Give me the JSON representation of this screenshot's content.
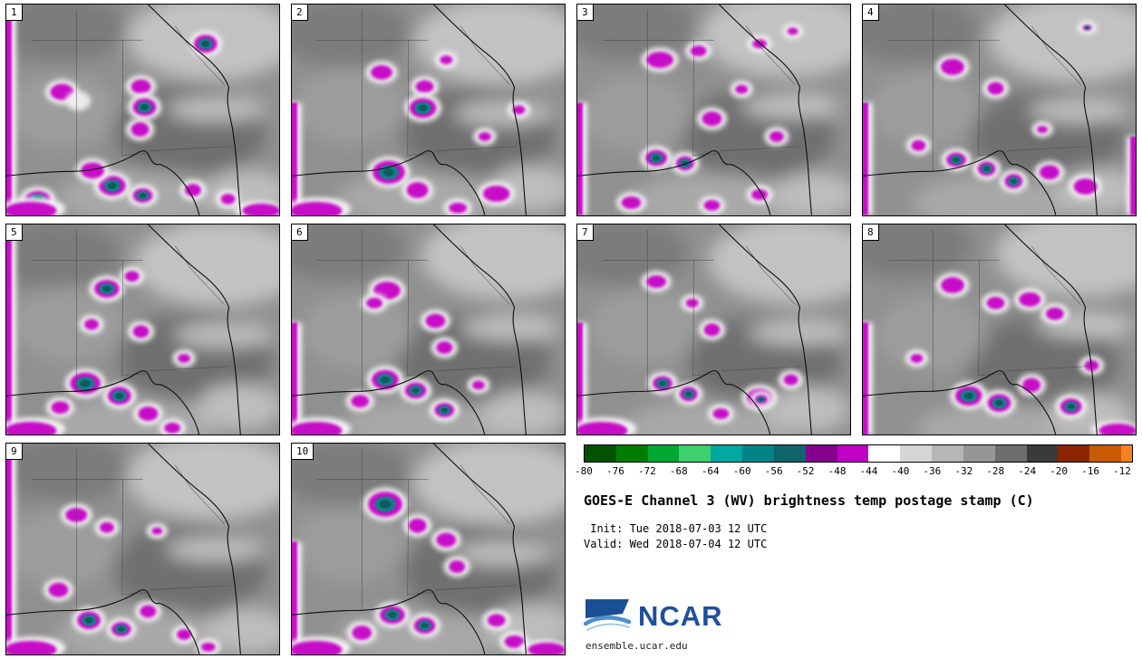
{
  "figure": {
    "background": "#ffffff"
  },
  "panels": [
    {
      "label": "1",
      "blobs": [
        [
          62,
          98,
          13,
          9,
          "m"
        ],
        [
          80,
          108,
          8,
          6,
          "w"
        ],
        [
          150,
          92,
          11,
          8,
          "m"
        ],
        [
          154,
          115,
          13,
          10,
          "t"
        ],
        [
          149,
          140,
          10,
          8,
          "m"
        ],
        [
          222,
          44,
          13,
          10,
          "t"
        ],
        [
          118,
          203,
          15,
          11,
          "t"
        ],
        [
          152,
          214,
          11,
          8,
          "t"
        ],
        [
          96,
          186,
          13,
          9,
          "m"
        ],
        [
          208,
          208,
          9,
          7,
          "m"
        ],
        [
          247,
          218,
          8,
          6,
          "m"
        ],
        [
          35,
          218,
          14,
          9,
          "t"
        ]
      ],
      "edges": [
        "L",
        "bl",
        "br"
      ]
    },
    {
      "label": "2",
      "blobs": [
        [
          100,
          76,
          12,
          8,
          "m"
        ],
        [
          148,
          92,
          10,
          7,
          "m"
        ],
        [
          146,
          116,
          15,
          11,
          "t"
        ],
        [
          108,
          188,
          18,
          13,
          "t"
        ],
        [
          140,
          208,
          12,
          9,
          "m"
        ],
        [
          172,
          62,
          7,
          5,
          "m"
        ],
        [
          215,
          148,
          7,
          5,
          "m"
        ],
        [
          253,
          118,
          7,
          5,
          "m"
        ],
        [
          228,
          212,
          15,
          9,
          "m"
        ],
        [
          185,
          228,
          10,
          6,
          "m"
        ]
      ],
      "edges": [
        "l",
        "bl"
      ]
    },
    {
      "label": "3",
      "blobs": [
        [
          92,
          62,
          15,
          9,
          "m"
        ],
        [
          135,
          52,
          9,
          6,
          "m"
        ],
        [
          203,
          44,
          8,
          5,
          "m"
        ],
        [
          240,
          30,
          6,
          4,
          "m"
        ],
        [
          150,
          128,
          11,
          8,
          "m"
        ],
        [
          183,
          95,
          7,
          5,
          "m"
        ],
        [
          88,
          172,
          12,
          9,
          "t"
        ],
        [
          120,
          178,
          10,
          8,
          "t"
        ],
        [
          222,
          148,
          8,
          6,
          "m"
        ],
        [
          203,
          213,
          9,
          6,
          "m"
        ],
        [
          60,
          222,
          11,
          7,
          "m"
        ],
        [
          150,
          225,
          9,
          6,
          "m"
        ]
      ],
      "edges": [
        "l"
      ]
    },
    {
      "label": "4",
      "blobs": [
        [
          100,
          70,
          13,
          9,
          "m"
        ],
        [
          148,
          94,
          9,
          7,
          "m"
        ],
        [
          62,
          158,
          8,
          6,
          "m"
        ],
        [
          104,
          174,
          11,
          8,
          "t"
        ],
        [
          138,
          184,
          10,
          8,
          "t"
        ],
        [
          168,
          198,
          10,
          8,
          "t"
        ],
        [
          208,
          188,
          11,
          8,
          "m"
        ],
        [
          248,
          204,
          13,
          9,
          "m"
        ],
        [
          250,
          26,
          5,
          3,
          "t"
        ],
        [
          200,
          140,
          6,
          4,
          "m"
        ]
      ],
      "edges": [
        "l",
        "r"
      ]
    },
    {
      "label": "5",
      "blobs": [
        [
          112,
          72,
          14,
          10,
          "t"
        ],
        [
          140,
          58,
          8,
          6,
          "m"
        ],
        [
          95,
          112,
          8,
          6,
          "m"
        ],
        [
          150,
          120,
          9,
          7,
          "m"
        ],
        [
          88,
          178,
          17,
          12,
          "t"
        ],
        [
          126,
          192,
          13,
          10,
          "t"
        ],
        [
          158,
          212,
          11,
          8,
          "m"
        ],
        [
          198,
          150,
          7,
          5,
          "m"
        ],
        [
          60,
          205,
          10,
          7,
          "m"
        ],
        [
          185,
          228,
          9,
          6,
          "m"
        ]
      ],
      "edges": [
        "L",
        "bl"
      ]
    },
    {
      "label": "6",
      "blobs": [
        [
          106,
          74,
          15,
          10,
          "m"
        ],
        [
          92,
          88,
          9,
          6,
          "m"
        ],
        [
          160,
          108,
          11,
          8,
          "m"
        ],
        [
          170,
          138,
          9,
          7,
          "m"
        ],
        [
          104,
          174,
          15,
          11,
          "t"
        ],
        [
          138,
          186,
          12,
          9,
          "t"
        ],
        [
          170,
          208,
          11,
          8,
          "t"
        ],
        [
          76,
          198,
          10,
          7,
          "m"
        ],
        [
          208,
          180,
          7,
          5,
          "m"
        ]
      ],
      "edges": [
        "l",
        "bl"
      ]
    },
    {
      "label": "7",
      "blobs": [
        [
          88,
          64,
          11,
          7,
          "m"
        ],
        [
          128,
          88,
          7,
          5,
          "m"
        ],
        [
          150,
          118,
          9,
          7,
          "m"
        ],
        [
          95,
          178,
          11,
          8,
          "t"
        ],
        [
          124,
          190,
          10,
          8,
          "t"
        ],
        [
          203,
          194,
          14,
          10,
          "m"
        ],
        [
          205,
          196,
          7,
          5,
          "t"
        ],
        [
          238,
          174,
          8,
          6,
          "m"
        ],
        [
          160,
          212,
          9,
          6,
          "m"
        ]
      ],
      "edges": [
        "l",
        "bl"
      ]
    },
    {
      "label": "8",
      "blobs": [
        [
          100,
          68,
          13,
          9,
          "m"
        ],
        [
          148,
          88,
          10,
          7,
          "m"
        ],
        [
          186,
          84,
          12,
          8,
          "m"
        ],
        [
          214,
          100,
          10,
          7,
          "m"
        ],
        [
          118,
          192,
          15,
          11,
          "t"
        ],
        [
          152,
          200,
          13,
          10,
          "t"
        ],
        [
          188,
          180,
          10,
          8,
          "m"
        ],
        [
          232,
          204,
          12,
          9,
          "t"
        ],
        [
          255,
          158,
          8,
          6,
          "m"
        ],
        [
          60,
          150,
          7,
          5,
          "m"
        ]
      ],
      "edges": [
        "l",
        "br"
      ]
    },
    {
      "label": "9",
      "blobs": [
        [
          78,
          80,
          12,
          8,
          "m"
        ],
        [
          112,
          94,
          8,
          6,
          "m"
        ],
        [
          168,
          98,
          6,
          4,
          "m"
        ],
        [
          58,
          164,
          11,
          8,
          "m"
        ],
        [
          92,
          198,
          13,
          10,
          "t"
        ],
        [
          128,
          208,
          11,
          8,
          "t"
        ],
        [
          158,
          188,
          9,
          7,
          "m"
        ],
        [
          198,
          214,
          8,
          6,
          "m"
        ],
        [
          225,
          228,
          8,
          5,
          "m"
        ]
      ],
      "edges": [
        "L",
        "bl"
      ]
    },
    {
      "label": "10",
      "blobs": [
        [
          104,
          68,
          19,
          14,
          "t"
        ],
        [
          140,
          92,
          10,
          8,
          "m"
        ],
        [
          172,
          108,
          11,
          8,
          "m"
        ],
        [
          184,
          138,
          9,
          7,
          "m"
        ],
        [
          112,
          192,
          14,
          10,
          "t"
        ],
        [
          148,
          204,
          12,
          9,
          "t"
        ],
        [
          78,
          212,
          11,
          8,
          "m"
        ],
        [
          228,
          198,
          10,
          7,
          "m"
        ],
        [
          248,
          222,
          11,
          7,
          "m"
        ]
      ],
      "edges": [
        "l",
        "bl",
        "br"
      ]
    }
  ],
  "colorbar": {
    "ticks": [
      "-80",
      "-76",
      "-72",
      "-68",
      "-64",
      "-60",
      "-56",
      "-52",
      "-48",
      "-44",
      "-40",
      "-36",
      "-32",
      "-28",
      "-24",
      "-20",
      "-16",
      "-12"
    ],
    "segment_colors": [
      "#005200",
      "#007d00",
      "#00a832",
      "#3ecf6e",
      "#00a8a2",
      "#008486",
      "#0d6569",
      "#84008c",
      "#bf00c4",
      "#ffffff",
      "#d6d6d6",
      "#b6b6b6",
      "#969696",
      "#6e6e6e",
      "#3a3a3a",
      "#8a2500",
      "#c85a00"
    ],
    "tail_color": "#f58220"
  },
  "legend": {
    "title": "GOES-E Channel 3 (WV) brightness temp postage stamp (C)",
    "init": " Init: Tue 2018-07-03 12 UTC",
    "valid": "Valid: Wed 2018-07-04 12 UTC",
    "logo_text": "NCAR",
    "url": "ensemble.ucar.edu",
    "logo_color": "#1d4f9e"
  },
  "chart_data": {
    "type": "heatmap",
    "title": "GOES-E Channel 3 (WV) brightness temp postage stamp (C)",
    "panels": [
      1,
      2,
      3,
      4,
      5,
      6,
      7,
      8,
      9,
      10
    ],
    "units": "C",
    "colorbar_ticks": [
      -80,
      -76,
      -72,
      -68,
      -64,
      -60,
      -56,
      -52,
      -48,
      -44,
      -40,
      -36,
      -32,
      -28,
      -24,
      -20,
      -16,
      -12
    ],
    "colorbar_colors": [
      "#005200",
      "#007d00",
      "#00a832",
      "#3ecf6e",
      "#00a8a2",
      "#008486",
      "#0d6569",
      "#84008c",
      "#bf00c4",
      "#ffffff",
      "#d6d6d6",
      "#b6b6b6",
      "#969696",
      "#6e6e6e",
      "#3a3a3a",
      "#8a2500",
      "#c85a00",
      "#f58220"
    ],
    "legend_position": "bottom-right",
    "init": "Tue 2018-07-03 12 UTC",
    "valid": "Wed 2018-07-04 12 UTC"
  }
}
